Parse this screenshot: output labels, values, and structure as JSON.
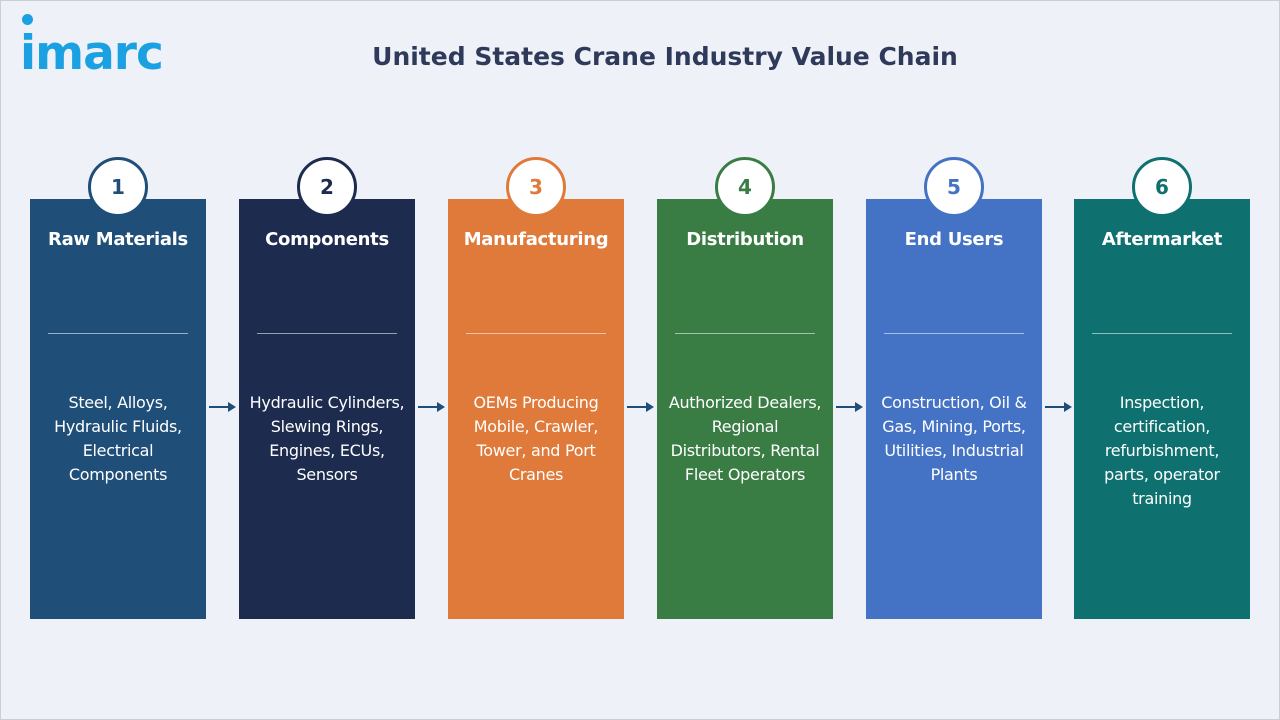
{
  "logo": {
    "text": "imarc",
    "color": "#1ba1e2"
  },
  "title": "United States Crane Industry Value Chain",
  "stages": [
    {
      "number": "1",
      "name": "Raw Materials",
      "description": "Steel, Alloys, Hydraulic Fluids, Electrical Components",
      "color": "#1f4e79"
    },
    {
      "number": "2",
      "name": "Components",
      "description": "Hydraulic Cylinders, Slewing Rings, Engines, ECUs, Sensors",
      "color": "#1c2b4e"
    },
    {
      "number": "3",
      "name": "Manufacturing",
      "description": "OEMs Producing Mobile, Crawler, Tower, and Port Cranes",
      "color": "#e07a3a"
    },
    {
      "number": "4",
      "name": "Distribution",
      "description": "Authorized Dealers, Regional Distributors, Rental Fleet Operators",
      "color": "#3a7d44"
    },
    {
      "number": "5",
      "name": "End Users",
      "description": "Construction, Oil & Gas, Mining, Ports, Utilities, Industrial Plants",
      "color": "#4472c4"
    },
    {
      "number": "6",
      "name": "Aftermarket",
      "description": "Inspection, certification, refurbishment, parts, operator training",
      "color": "#0f7070"
    }
  ],
  "arrow_color": "#1f4e79"
}
